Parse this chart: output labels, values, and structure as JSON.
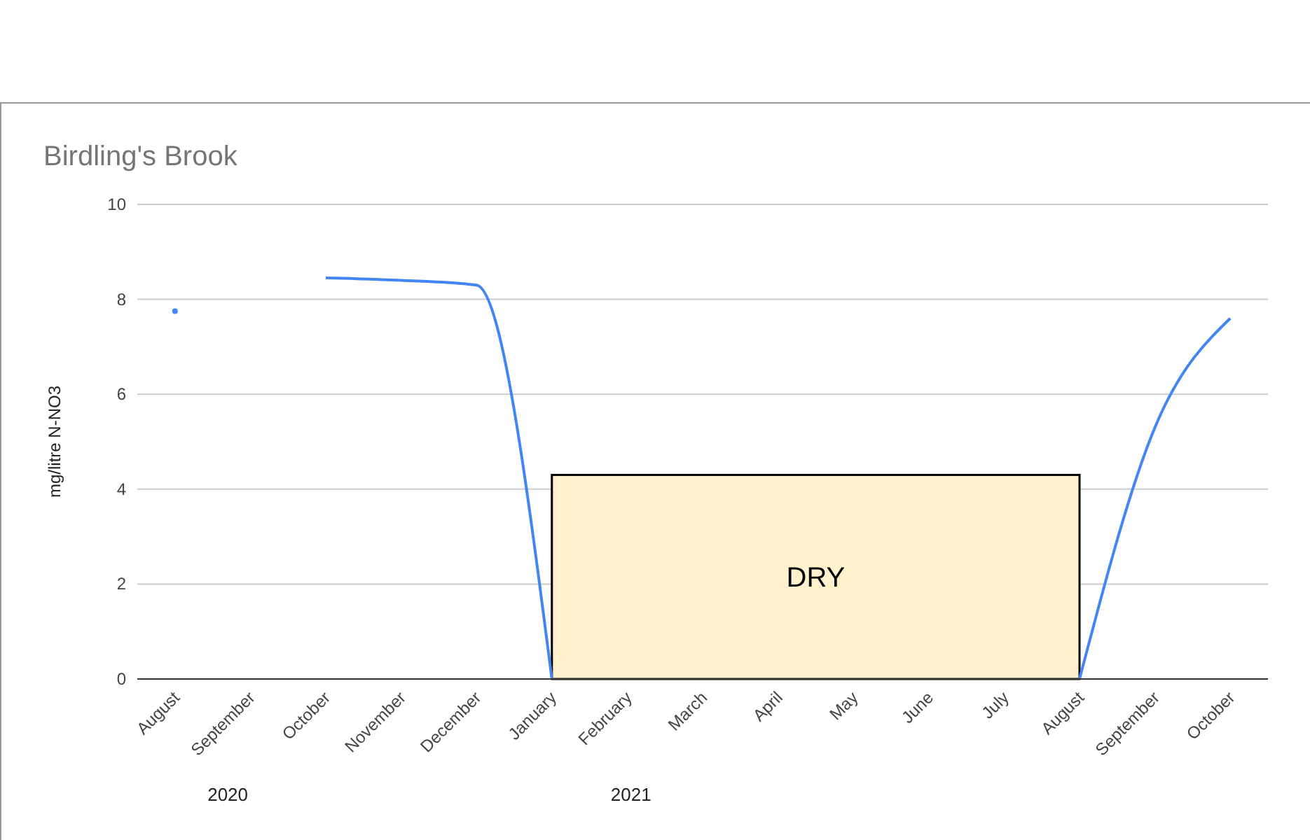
{
  "chart_data": {
    "type": "line",
    "title": "Birdling's Brook",
    "ylabel": "mg/litre N-NO3",
    "categories": [
      "August",
      "September",
      "October",
      "November",
      "December",
      "January",
      "February",
      "March",
      "April",
      "May",
      "June",
      "July",
      "August",
      "September",
      "October"
    ],
    "series": [
      {
        "color": "#4285f4",
        "values": [
          7.75,
          null,
          8.45,
          8.4,
          8.3,
          0,
          null,
          null,
          null,
          null,
          null,
          null,
          0,
          5.3,
          7.6
        ]
      }
    ],
    "ylim": [
      0,
      10
    ],
    "yticks": [
      0,
      2,
      4,
      6,
      8,
      10
    ],
    "grid": "y",
    "marker": "none",
    "annotations": [
      "DRY",
      "2020",
      "2021"
    ]
  }
}
